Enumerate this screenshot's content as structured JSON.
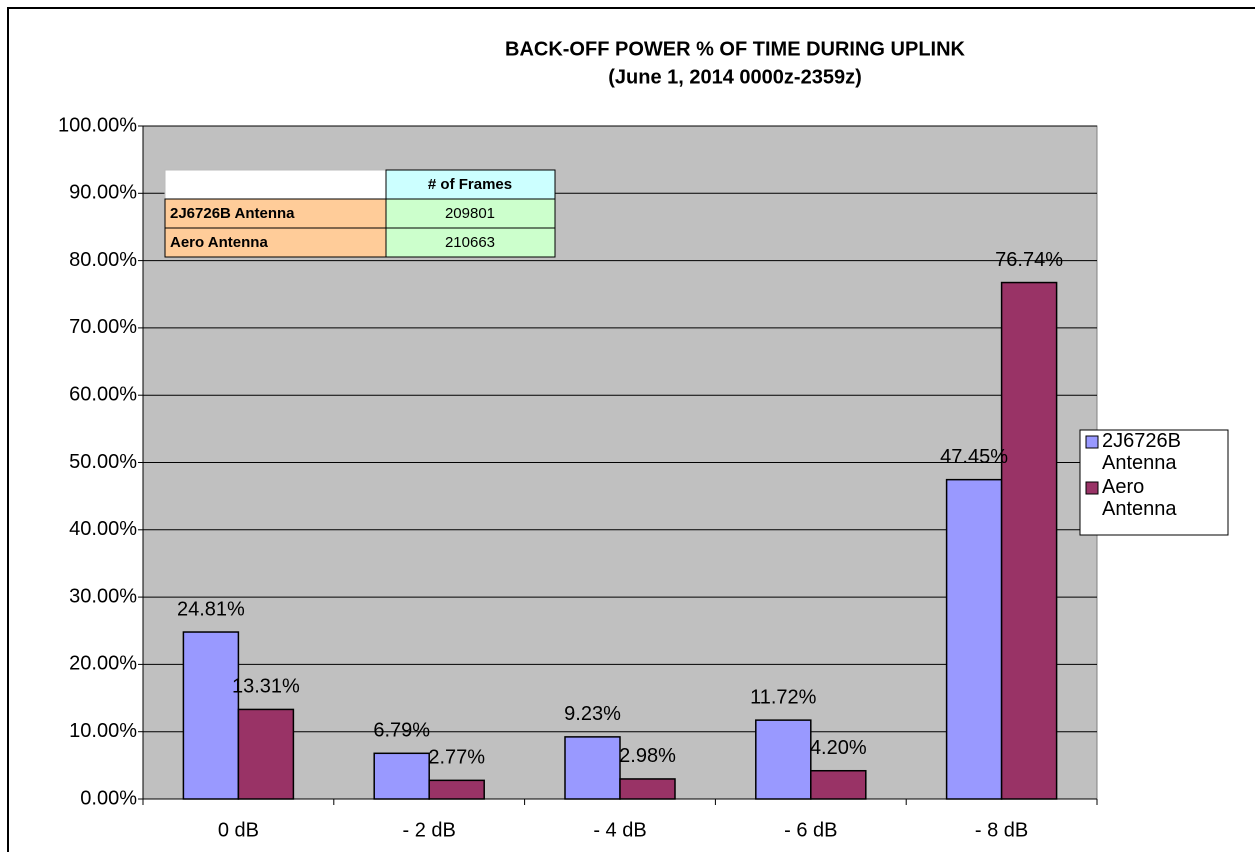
{
  "chart_data": {
    "type": "bar",
    "title": "BACK-OFF POWER % OF TIME DURING UPLINK",
    "subtitle": "(June 1, 2014 0000z-2359z)",
    "categories": [
      "0 dB",
      "- 2 dB",
      "- 4 dB",
      "- 6 dB",
      "- 8 dB"
    ],
    "series": [
      {
        "name": "2J6726B Antenna",
        "color": "#9999ff",
        "values": [
          24.81,
          6.79,
          9.23,
          11.72,
          47.45
        ],
        "value_labels": [
          "24.81%",
          "6.79%",
          "9.23%",
          "11.72%",
          "47.45%"
        ]
      },
      {
        "name": "Aero Antenna",
        "color": "#993366",
        "values": [
          13.31,
          2.77,
          2.98,
          4.2,
          76.74
        ],
        "value_labels": [
          "13.31%",
          "2.77%",
          "2.98%",
          "4.20%",
          "76.74%"
        ]
      }
    ],
    "ylim": [
      0,
      100
    ],
    "yticks": [
      {
        "value": 0,
        "label": "0.00%"
      },
      {
        "value": 10,
        "label": "10.00%"
      },
      {
        "value": 20,
        "label": "20.00%"
      },
      {
        "value": 30,
        "label": "30.00%"
      },
      {
        "value": 40,
        "label": "40.00%"
      },
      {
        "value": 50,
        "label": "50.00%"
      },
      {
        "value": 60,
        "label": "60.00%"
      },
      {
        "value": 70,
        "label": "70.00%"
      },
      {
        "value": 80,
        "label": "80.00%"
      },
      {
        "value": 90,
        "label": "90.00%"
      },
      {
        "value": 100,
        "label": "100.00%"
      }
    ],
    "grid": true,
    "legend": "right",
    "table": {
      "header": "# of Frames",
      "rows": [
        [
          "2J6726B Antenna",
          209801
        ],
        [
          "Aero Antenna",
          210663
        ]
      ]
    }
  }
}
